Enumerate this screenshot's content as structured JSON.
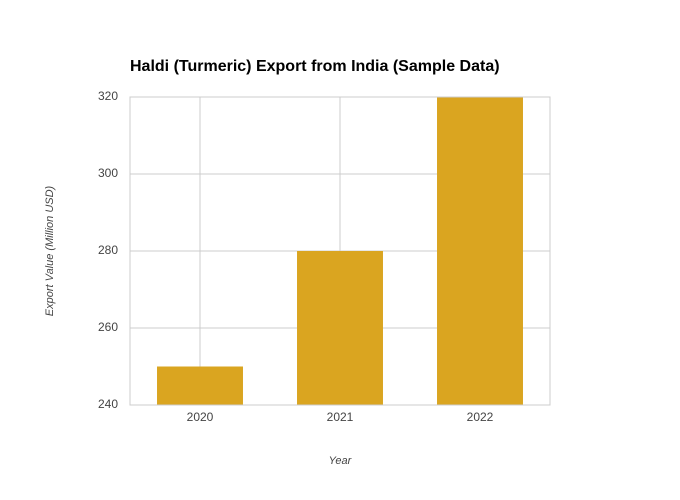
{
  "chart_data": {
    "type": "bar",
    "title": "Haldi (Turmeric) Export from India (Sample Data)",
    "x_label": "Year",
    "y_label": "Export Value (Million USD)",
    "categories": [
      "2020",
      "2021",
      "2022"
    ],
    "values": [
      250,
      280,
      320
    ],
    "color": "#daa520",
    "ylim": [
      240,
      320
    ],
    "yticks": [
      240,
      260,
      280,
      300,
      320
    ],
    "grid": true
  }
}
